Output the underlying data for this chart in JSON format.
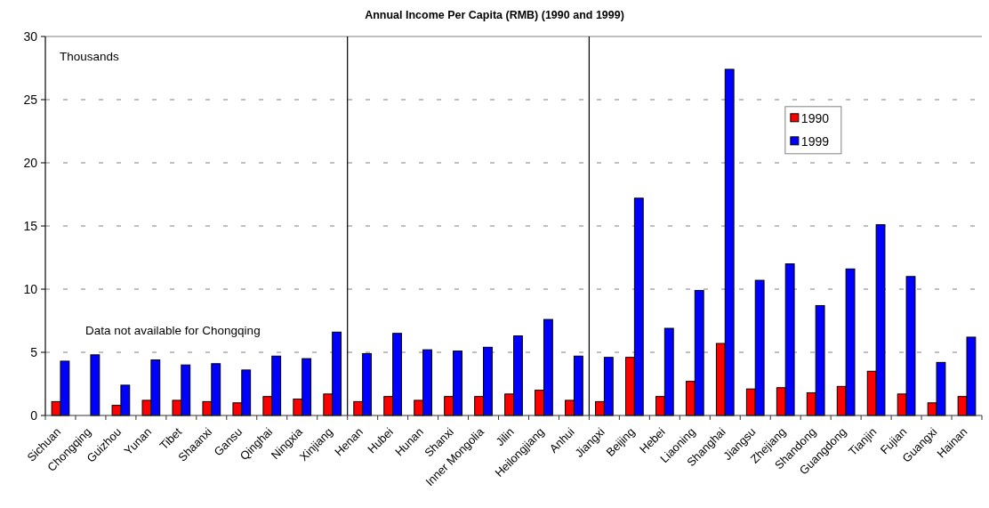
{
  "chart_data": {
    "type": "bar",
    "title": "Annual Income Per Capita (RMB) (1990 and 1999)",
    "ylabel": "Thousands",
    "annotations": [
      "Data not available for Chongqing"
    ],
    "categories": [
      "Sichuan",
      "Chongqing",
      "Guizhou",
      "Yunan",
      "Tibet",
      "Shaanxi",
      "Gansu",
      "Qinghai",
      "Ningxia",
      "Xinjiang",
      "Henan",
      "Hubei",
      "Hunan",
      "Shanxi",
      "Inner Mongolia",
      "Jilin",
      "Heilongjiang",
      "Anhui",
      "Jiangxi",
      "Beijing",
      "Hebei",
      "Liaoning",
      "Shanghai",
      "Jiangsu",
      "Zhejiang",
      "Shandong",
      "Guangdong",
      "Tianjin",
      "Fujian",
      "Guangxi",
      "Hainan"
    ],
    "series": [
      {
        "name": "1990",
        "color": "#ff0000",
        "values": [
          1.1,
          null,
          0.8,
          1.2,
          1.2,
          1.1,
          1.0,
          1.5,
          1.3,
          1.7,
          1.1,
          1.5,
          1.2,
          1.5,
          1.5,
          1.7,
          2.0,
          1.2,
          1.1,
          4.6,
          1.5,
          2.7,
          5.7,
          2.1,
          2.2,
          1.8,
          2.3,
          3.5,
          1.7,
          1.0,
          1.5
        ]
      },
      {
        "name": "1999",
        "color": "#0000ff",
        "values": [
          4.3,
          4.8,
          2.4,
          4.4,
          4.0,
          4.1,
          3.6,
          4.7,
          4.5,
          6.6,
          4.9,
          6.5,
          5.2,
          5.1,
          5.4,
          6.3,
          7.6,
          4.7,
          4.6,
          17.2,
          6.9,
          9.9,
          27.4,
          10.7,
          12.0,
          8.7,
          11.6,
          15.1,
          11.0,
          4.2,
          6.2
        ]
      }
    ],
    "ylim": [
      0,
      30
    ],
    "yticks": [
      0,
      5,
      10,
      15,
      20,
      25,
      30
    ],
    "grid": "y",
    "legend": "top right"
  }
}
